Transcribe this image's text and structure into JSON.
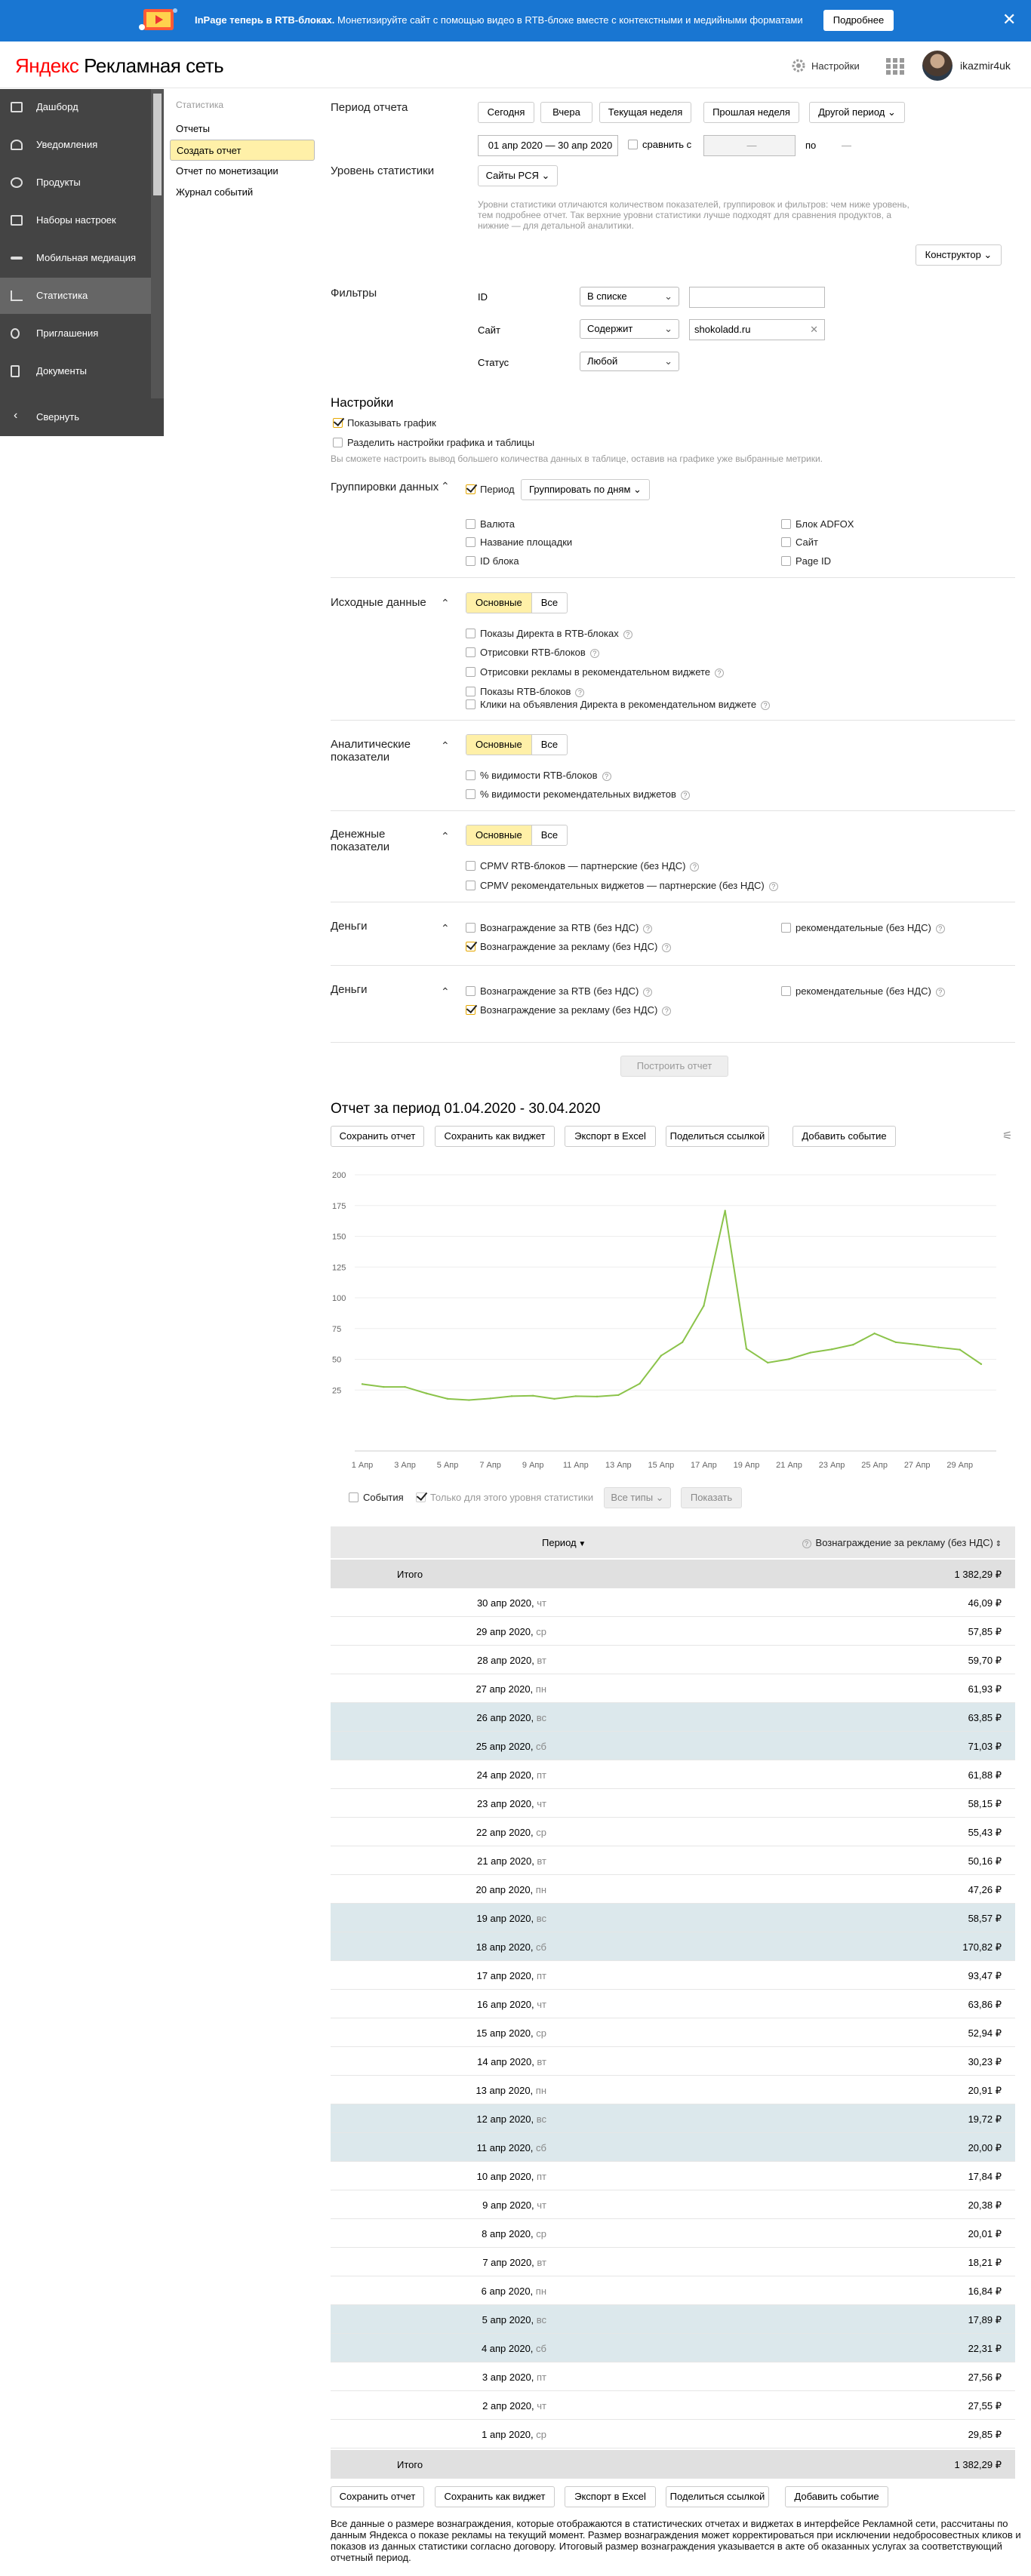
{
  "banner": {
    "bold": "InPage теперь в RTB-блоках.",
    "text": " Монетизируйте сайт с помощью видео в RTB-блоке вместе с контекстными и медийными форматами",
    "button": "Подробнее",
    "close": "✕"
  },
  "header": {
    "logo_ya": "Яндекс",
    "logo_rest": " Рекламная сеть",
    "settings": "Настройки",
    "user": "ikazmir4uk"
  },
  "nav": {
    "items": [
      {
        "label": "Дашборд",
        "icon": "dashboard-icon"
      },
      {
        "label": "Уведомления",
        "icon": "bell-icon"
      },
      {
        "label": "Продукты",
        "icon": "products-icon"
      },
      {
        "label": "Наборы настроек",
        "icon": "settings-set-icon"
      },
      {
        "label": "Мобильная медиация",
        "icon": "mobile-icon"
      },
      {
        "label": "Статистика",
        "icon": "chart-icon"
      },
      {
        "label": "Приглашения",
        "icon": "invite-icon"
      },
      {
        "label": "Документы",
        "icon": "document-icon"
      }
    ],
    "collapse": "Свернуть"
  },
  "submenu": {
    "heading": "Статистика",
    "items": [
      "Отчеты",
      "Создать отчет",
      "Отчет по монетизации",
      "Журнал событий"
    ]
  },
  "period": {
    "label": "Период отчета",
    "buttons": [
      "Сегодня",
      "Вчера",
      "Текущая неделя",
      "Прошлая неделя",
      "Другой период"
    ],
    "range": "01 апр 2020 — 30 апр 2020",
    "compare": "сравнить с",
    "compare_range": "—",
    "po": "по",
    "po_value": "—"
  },
  "level": {
    "label": "Уровень статистики",
    "value": "Сайты РСЯ",
    "hint": "Уровни статистики отличаются количеством показателей, группировок и фильтров: чем ниже уровень, тем подробнее отчет. Так верхние уровни статистики лучше подходят для сравнения продуктов, а нижние — для детальной аналитики.",
    "constructor": "Конструктор"
  },
  "filters": {
    "label": "Фильтры",
    "rows": [
      {
        "name": "ID",
        "op": "В списке",
        "value": ""
      },
      {
        "name": "Сайт",
        "op": "Содержит",
        "value": "shokoladd.ru"
      },
      {
        "name": "Статус",
        "op": "Любой",
        "value": ""
      }
    ]
  },
  "settings": {
    "title": "Настройки",
    "show_chart": "Показывать график",
    "split": "Разделить настройки графика и таблицы",
    "hint": "Вы сможете настроить вывод большего количества данных в таблице, оставив на графике уже выбранные метрики."
  },
  "grouping": {
    "label": "Группировки данных",
    "period": "Период",
    "group_by": "Группировать по дням",
    "left": [
      "Валюта",
      "Название площадки",
      "ID блока"
    ],
    "right": [
      "Блок ADFOX",
      "Сайт",
      "Page ID"
    ]
  },
  "source": {
    "label": "Исходные данные",
    "seg": [
      "Основные",
      "Все"
    ],
    "items": [
      "Показы Директа в RTB-блоках",
      "Отрисовки RTB-блоков",
      "Отрисовки рекламы в рекомендательном виджете",
      "Показы RTB-блоков",
      "Клики на объявления Директа в рекомендательном виджете"
    ]
  },
  "analytic": {
    "label": "Аналитические показатели",
    "seg": [
      "Основные",
      "Все"
    ],
    "items": [
      "% видимости RTB-блоков",
      "% видимости рекомендательных виджетов"
    ]
  },
  "money_ind": {
    "label": "Денежные показатели",
    "seg": [
      "Основные",
      "Все"
    ],
    "items": [
      "CPMV RTB-блоков — партнерские (без НДС)",
      "CPMV рекомендательных виджетов — партнерские (без НДС)"
    ]
  },
  "money1": {
    "label": "Деньги",
    "rtb": "Вознаграждение за RTB (без НДС)",
    "ads": "Вознаграждение за рекламу (без НДС)",
    "rec": "рекомендательные (без НДС)"
  },
  "money2": {
    "label": "Деньги",
    "rtb": "Вознаграждение за RTB (без НДС)",
    "ads": "Вознаграждение за рекламу (без НДС)",
    "rec": "рекомендательные (без НДС)"
  },
  "build_button": "Построить отчет",
  "report": {
    "title": "Отчет за период 01.04.2020 - 30.04.2020",
    "buttons": [
      "Сохранить отчет",
      "Сохранить как виджет",
      "Экспорт в Excel",
      "Поделиться ссылкой",
      "Добавить событие"
    ],
    "events": "События",
    "only_level": "Только для этого уровня статистики",
    "all_types": "Все типы",
    "show": "Показать"
  },
  "chart_data": {
    "type": "line",
    "ylim": [
      0,
      200
    ],
    "yticks": [
      25,
      50,
      75,
      100,
      125,
      150,
      175,
      200
    ],
    "xticks": [
      "1 Апр",
      "3 Апр",
      "5 Апр",
      "7 Апр",
      "9 Апр",
      "11 Апр",
      "13 Апр",
      "15 Апр",
      "17 Апр",
      "19 Апр",
      "21 Апр",
      "23 Апр",
      "25 Апр",
      "27 Апр",
      "29 Апр"
    ],
    "series": [
      {
        "color": "#8bc34a",
        "x": [
          1,
          2,
          3,
          4,
          5,
          6,
          7,
          8,
          9,
          10,
          11,
          12,
          13,
          14,
          15,
          16,
          17,
          18,
          19,
          20,
          21,
          22,
          23,
          24,
          25,
          26,
          27,
          28,
          29,
          30
        ],
        "values": [
          29.85,
          27.55,
          27.56,
          22.31,
          17.89,
          16.84,
          18.21,
          20.01,
          20.38,
          17.84,
          20.0,
          19.72,
          20.91,
          30.23,
          52.94,
          63.86,
          93.47,
          170.82,
          58.57,
          47.26,
          50.16,
          55.43,
          58.15,
          61.88,
          71.03,
          63.85,
          61.93,
          59.7,
          57.85,
          46.09
        ]
      }
    ]
  },
  "table": {
    "col_period": "Период",
    "col_value": "Вознаграждение за рекламу (без НДС)",
    "total_label": "Итого",
    "total_value": "1 382,29 ₽",
    "rows": [
      {
        "date": "30 апр 2020, ",
        "wd": "чт",
        "value": "46,09 ₽",
        "weekend": false
      },
      {
        "date": "29 апр 2020, ",
        "wd": "ср",
        "value": "57,85 ₽",
        "weekend": false
      },
      {
        "date": "28 апр 2020, ",
        "wd": "вт",
        "value": "59,70 ₽",
        "weekend": false
      },
      {
        "date": "27 апр 2020, ",
        "wd": "пн",
        "value": "61,93 ₽",
        "weekend": false
      },
      {
        "date": "26 апр 2020, ",
        "wd": "вс",
        "value": "63,85 ₽",
        "weekend": true
      },
      {
        "date": "25 апр 2020, ",
        "wd": "сб",
        "value": "71,03 ₽",
        "weekend": true
      },
      {
        "date": "24 апр 2020, ",
        "wd": "пт",
        "value": "61,88 ₽",
        "weekend": false
      },
      {
        "date": "23 апр 2020, ",
        "wd": "чт",
        "value": "58,15 ₽",
        "weekend": false
      },
      {
        "date": "22 апр 2020, ",
        "wd": "ср",
        "value": "55,43 ₽",
        "weekend": false
      },
      {
        "date": "21 апр 2020, ",
        "wd": "вт",
        "value": "50,16 ₽",
        "weekend": false
      },
      {
        "date": "20 апр 2020, ",
        "wd": "пн",
        "value": "47,26 ₽",
        "weekend": false
      },
      {
        "date": "19 апр 2020, ",
        "wd": "вс",
        "value": "58,57 ₽",
        "weekend": true
      },
      {
        "date": "18 апр 2020, ",
        "wd": "сб",
        "value": "170,82 ₽",
        "weekend": true
      },
      {
        "date": "17 апр 2020, ",
        "wd": "пт",
        "value": "93,47 ₽",
        "weekend": false
      },
      {
        "date": "16 апр 2020, ",
        "wd": "чт",
        "value": "63,86 ₽",
        "weekend": false
      },
      {
        "date": "15 апр 2020, ",
        "wd": "ср",
        "value": "52,94 ₽",
        "weekend": false
      },
      {
        "date": "14 апр 2020, ",
        "wd": "вт",
        "value": "30,23 ₽",
        "weekend": false
      },
      {
        "date": "13 апр 2020, ",
        "wd": "пн",
        "value": "20,91 ₽",
        "weekend": false
      },
      {
        "date": "12 апр 2020, ",
        "wd": "вс",
        "value": "19,72 ₽",
        "weekend": true
      },
      {
        "date": "11 апр 2020, ",
        "wd": "сб",
        "value": "20,00 ₽",
        "weekend": true
      },
      {
        "date": "10 апр 2020, ",
        "wd": "пт",
        "value": "17,84 ₽",
        "weekend": false
      },
      {
        "date": "9 апр 2020, ",
        "wd": "чт",
        "value": "20,38 ₽",
        "weekend": false
      },
      {
        "date": "8 апр 2020, ",
        "wd": "ср",
        "value": "20,01 ₽",
        "weekend": false
      },
      {
        "date": "7 апр 2020, ",
        "wd": "вт",
        "value": "18,21 ₽",
        "weekend": false
      },
      {
        "date": "6 апр 2020, ",
        "wd": "пн",
        "value": "16,84 ₽",
        "weekend": false
      },
      {
        "date": "5 апр 2020, ",
        "wd": "вс",
        "value": "17,89 ₽",
        "weekend": true
      },
      {
        "date": "4 апр 2020, ",
        "wd": "сб",
        "value": "22,31 ₽",
        "weekend": true
      },
      {
        "date": "3 апр 2020, ",
        "wd": "пт",
        "value": "27,56 ₽",
        "weekend": false
      },
      {
        "date": "2 апр 2020, ",
        "wd": "чт",
        "value": "27,55 ₽",
        "weekend": false
      },
      {
        "date": "1 апр 2020, ",
        "wd": "ср",
        "value": "29,85 ₽",
        "weekend": false
      }
    ]
  },
  "footnote": "Все данные о размере вознаграждения, которые отображаются в статистических отчетах и виджетах в интерфейсе Рекламной сети, рассчитаны по данным Яндекса о показе рекламы на текущий момент. Размер вознаграждения может корректироваться при исключении недобросовестных кликов и показов из данных статистики согласно договору. Итоговый размер вознаграждения указывается в акте об оказанных услугах за соответствующий отчетный период."
}
